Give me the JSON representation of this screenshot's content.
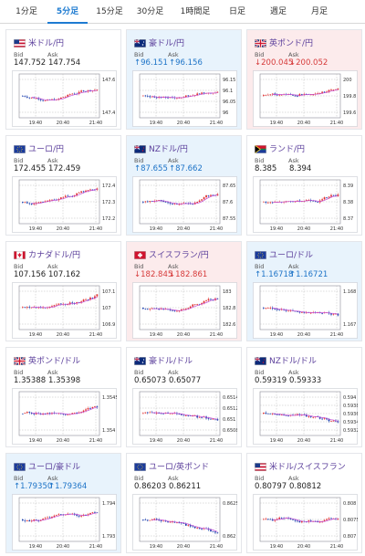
{
  "tabs": [
    {
      "label": "1分足"
    },
    {
      "label": "5分足",
      "active": true
    },
    {
      "label": "15分足"
    },
    {
      "label": "30分足"
    },
    {
      "label": "1時間足"
    },
    {
      "label": "日足"
    },
    {
      "label": "週足"
    },
    {
      "label": "月足"
    }
  ],
  "bid_label": "Bid",
  "ask_label": "Ask",
  "cards": [
    {
      "pair": "米ドル/円",
      "flag": "us",
      "bid": "147.752",
      "ask": "147.754",
      "dir": "none",
      "chart": {
        "y_ticks": [
          "147.6",
          "147.4"
        ],
        "x_ticks": [
          "19:40",
          "20:40",
          "21:40"
        ],
        "trend": "up"
      }
    },
    {
      "pair": "豪ドル/円",
      "flag": "au",
      "bid": "96.151",
      "ask": "96.156",
      "dir": "up",
      "chart": {
        "y_ticks": [
          "96.15",
          "96.1",
          "96.05",
          "96"
        ],
        "x_ticks": [
          "19:40",
          "20:40",
          "21:40"
        ],
        "trend": "up"
      }
    },
    {
      "pair": "英ポンド/円",
      "flag": "gb",
      "bid": "200.045",
      "ask": "200.052",
      "dir": "down",
      "chart": {
        "y_ticks": [
          "200",
          "199.8",
          "199.6"
        ],
        "x_ticks": [
          "19:40",
          "20:40",
          "21:40"
        ],
        "trend": "up"
      }
    },
    {
      "pair": "ユーロ/円",
      "flag": "eu",
      "bid": "172.455",
      "ask": "172.459",
      "dir": "none",
      "chart": {
        "y_ticks": [
          "172.4",
          "172.3",
          "172.2"
        ],
        "x_ticks": [
          "19:40",
          "20:40",
          "21:40"
        ],
        "trend": "up"
      }
    },
    {
      "pair": "NZドル/円",
      "flag": "nz",
      "bid": "87.655",
      "ask": "87.662",
      "dir": "up",
      "chart": {
        "y_ticks": [
          "87.65",
          "87.6",
          "87.55"
        ],
        "x_ticks": [
          "19:40",
          "20:40",
          "21:40"
        ],
        "trend": "up"
      }
    },
    {
      "pair": "ランド/円",
      "flag": "za",
      "bid": "8.385",
      "ask": "8.394",
      "dir": "none",
      "chart": {
        "y_ticks": [
          "8.39",
          "8.38",
          "8.37"
        ],
        "x_ticks": [
          "19:40",
          "20:40",
          "21:40"
        ],
        "trend": "up"
      }
    },
    {
      "pair": "カナダドル/円",
      "flag": "ca",
      "bid": "107.156",
      "ask": "107.162",
      "dir": "none",
      "chart": {
        "y_ticks": [
          "107.1",
          "107",
          "106.9"
        ],
        "x_ticks": [
          "19:40",
          "20:40",
          "21:40"
        ],
        "trend": "up"
      }
    },
    {
      "pair": "スイスフラン/円",
      "flag": "ch",
      "bid": "182.845",
      "ask": "182.861",
      "dir": "down",
      "chart": {
        "y_ticks": [
          "183",
          "182.8",
          "182.6"
        ],
        "x_ticks": [
          "19:40",
          "20:40",
          "21:40"
        ],
        "trend": "up"
      }
    },
    {
      "pair": "ユーロ/ドル",
      "flag": "eu",
      "bid": "1.16718",
      "ask": "1.16721",
      "dir": "up",
      "chart": {
        "y_ticks": [
          "1.168",
          "1.167"
        ],
        "x_ticks": [
          "19:40",
          "20:40",
          "21:40"
        ],
        "trend": "down"
      }
    },
    {
      "pair": "英ポンド/ドル",
      "flag": "gb",
      "bid": "1.35388",
      "ask": "1.35398",
      "dir": "none",
      "chart": {
        "y_ticks": [
          "1.3545",
          "1.354"
        ],
        "x_ticks": [
          "19:40",
          "20:40",
          "21:40"
        ],
        "trend": "flat"
      }
    },
    {
      "pair": "豪ドル/ドル",
      "flag": "au",
      "bid": "0.65073",
      "ask": "0.65077",
      "dir": "none",
      "chart": {
        "y_ticks": [
          "0.6514",
          "0.6512",
          "0.651",
          "0.6508"
        ],
        "x_ticks": [
          "19:40",
          "20:40",
          "21:40"
        ],
        "trend": "down"
      }
    },
    {
      "pair": "NZドル/ドル",
      "flag": "nz",
      "bid": "0.59319",
      "ask": "0.59333",
      "dir": "none",
      "chart": {
        "y_ticks": [
          "0.594",
          "0.5938",
          "0.5936",
          "0.5934",
          "0.5932"
        ],
        "x_ticks": [
          "19:40",
          "20:40",
          "21:40"
        ],
        "trend": "down"
      }
    },
    {
      "pair": "ユーロ/豪ドル",
      "flag": "eu",
      "bid": "1.79350",
      "ask": "1.79364",
      "dir": "up",
      "chart": {
        "y_ticks": [
          "1.794",
          "1.793"
        ],
        "x_ticks": [
          "19:40",
          "20:40",
          "21:40"
        ],
        "trend": "flat"
      }
    },
    {
      "pair": "ユーロ/英ポンド",
      "flag": "eu",
      "bid": "0.86203",
      "ask": "0.86211",
      "dir": "none",
      "chart": {
        "y_ticks": [
          "0.8625",
          "0.862"
        ],
        "x_ticks": [
          "19:40",
          "20:40",
          "21:40"
        ],
        "trend": "down"
      }
    },
    {
      "pair": "米ドル/スイスフラン",
      "flag": "us",
      "bid": "0.80797",
      "ask": "0.80812",
      "dir": "none",
      "chart": {
        "y_ticks": [
          "0.808",
          "0.8075",
          "0.807"
        ],
        "x_ticks": [
          "19:40",
          "20:40",
          "21:40"
        ],
        "trend": "flat"
      }
    }
  ],
  "colors": {
    "up_candle": "#e03131",
    "down_candle": "#1c3fae",
    "ma_line": "#c44bd4",
    "up_value": "#1d73c7",
    "down_value": "#d63a3a",
    "pair_text": "#5b3f9b",
    "up_card_bg": "#e8f3fc",
    "down_card_bg": "#fcebec"
  }
}
